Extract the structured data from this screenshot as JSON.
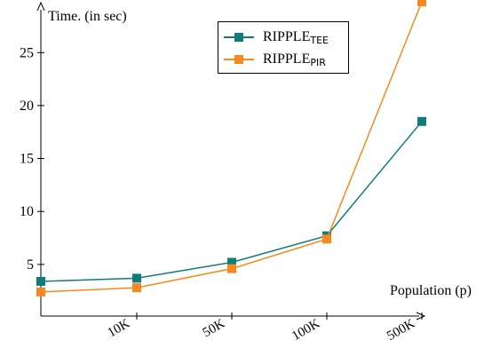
{
  "chart_data": {
    "type": "line",
    "ylabel": "Time. (in sec)",
    "xlabel": "Population (p)",
    "categories": [
      "",
      "10K",
      "50K",
      "100K",
      "500K"
    ],
    "ylim": [
      0,
      30
    ],
    "yticks": [
      5,
      10,
      15,
      20,
      25
    ],
    "grid": false,
    "legend_position": "top-center",
    "series": [
      {
        "name": "RIPPLE",
        "name_sub": "TEE",
        "color": "#0e7c7b",
        "marker": "square",
        "values": [
          3.4,
          3.7,
          5.2,
          7.7,
          18.5
        ]
      },
      {
        "name": "RIPPLE",
        "name_sub": "PIR",
        "color": "#f5891f",
        "marker": "square",
        "values": [
          2.4,
          2.8,
          4.6,
          7.4,
          29.8
        ]
      }
    ]
  }
}
